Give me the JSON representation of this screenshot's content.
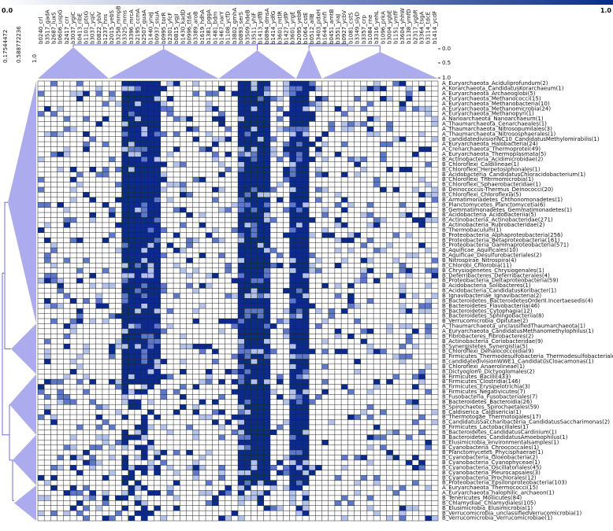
{
  "chart_data": {
    "type": "heatmap",
    "title": "",
    "colorbar": {
      "min_label": "0.0",
      "max_label": "1.0",
      "low_color": "#ffffff",
      "high_color": "#0a2a8c"
    },
    "dendrogram_color": "#8f8fe8",
    "column_dendrogram_ticks": [
      "0.0",
      "0.5",
      "1.0"
    ],
    "row_dendrogram_ticks": [
      "0.17544472",
      "0.588772236",
      "1.0"
    ],
    "columns": [
      "b0240_crl",
      "b3517_gadA",
      "b2687_luxS",
      "b0606_uspG",
      "b2417_crr",
      "b3037_ygiC",
      "b0413_ribE",
      "b1101_ptsG",
      "b3037_yqiC",
      "b0822_ybiV",
      "b1237_hns",
      "b2015_yebS",
      "b3258_mmpB",
      "b3325_mms",
      "b3396_mrcA",
      "b2195_ccmA",
      "b2507_guaA",
      "b1440_yneJ",
      "b0937_ssuA",
      "b0995_torR",
      "b2301_yfcF",
      "b0815_ygjI",
      "b1430_kadD",
      "b0996_ttdA",
      "b3389_aroB",
      "b1619_hdhA",
      "b1381_pggA",
      "b1481_bdm",
      "b1467_narY",
      "b1108_ycfD",
      "b3802_gmhA",
      "b0893_serS",
      "b3509_hdeB",
      "b3511_yhiF",
      "b1413_ydfB",
      "b0894_dmsA",
      "b1414_ydfG",
      "b3601_mtlR",
      "b1427_ydfP",
      "b3601_yrgE",
      "b2095_yebR",
      "b1064_cstE",
      "b0512_allB",
      "b3403_pdxH",
      "b1644_ymfI",
      "b0451_amtB",
      "b3551_yiaJ",
      "b0927_ycbV",
      "b1081_cstS",
      "b3349_slyD",
      "b3357_crp",
      "b1084_rne",
      "b3316_yehL",
      "b1096_prkA",
      "b3004_ygbE",
      "b1151_ymfF",
      "b3604_yhhW",
      "b1138_ymfD",
      "b2317_ygbR",
      "b3364_tsgA",
      "b3114_tdcE",
      "b1414_ycdF"
    ],
    "rows": [
      "A_Euryarchaeota_Aciduliprofundum(2)",
      "A_Korarchaeota_CandidatusKorarchaeum(1)",
      "A_Euryarchaeota_Archaeoglobi(5)",
      "A_Euryarchaeota_Methanococci(15)",
      "A_Euryarchaeota_Methanobacteria(10)",
      "A_Euryarchaeota_Methanomicrobia(24)",
      "A_Euryarchaeota_Methanopyri(1)",
      "A_Nanoarchaeota_Nanoarchaeum(1)",
      "A_Thaumarchaeota_Cenarchaeales(1)",
      "A_Thaumarchaeota_Nitrosopumilales(3)",
      "A_Thaumarchaeota_Nitrososphaerales(1)",
      "B_candidatedivisionNC10_CandidatusMethylomirabilis(1)",
      "A_Euryarchaeota_Halobacteria(24)",
      "A_Crenarchaeota_Thermoprotei(49)",
      "A_Euryarchaeota_Thermoplasmata(5)",
      "B_Actinobacteria_Acidimicrobidae(2)",
      "B_Chloroflexi_Caldilineae(1)",
      "B_Chloroflexi_Herpetosiphonales(1)",
      "B_Acidobacteria_CandidatusChloracidobacterium(1)",
      "B_Chloroflexi_Thermomicrobia(1)",
      "B_Chloroflexi_Sphaerobacteridae(1)",
      "B_Deinococcus-Thermus_Deinococci(20)",
      "B_Chloroflexi_Chloroflexia(5)",
      "B_Armatimonadetes_Chthonomonadetes(1)",
      "B_Planctomycetes_Planctomycetia(6)",
      "B_Gemmatimonadetes_Gemmatimonadetes(1)",
      "B_Acidobacteria_Acidobacteriia(5)",
      "B_Actinobacteria_Actinobacteridae(271)",
      "B_Actinobacteria_Rubrobacteridae(2)",
      "B_Thermobaculum(1)",
      "B_Proteobacteria_Alphaproteobacteria(256)",
      "B_Proteobacteria_Betaproteobacteria(161)",
      "B_Proteobacteria_Gammaproteobacteria(571)",
      "B_Aquificae_Aquificales(10)",
      "B_Aquificae_Desulfurobacteriales(2)",
      "B_Nitrospirae_Nitrospira(4)",
      "B_Chlorobi_Chlorobia(11)",
      "B_Chrysiogenetes_Chrysiogenales(1)",
      "B_Deferribacteres_Deferribacterales(4)",
      "B_Proteobacteria_Deltaproteobacteria(59)",
      "B_Acidobacteria_Solibacteres(1)",
      "B_Acidobacteria_CandidatusKoribacter(1)",
      "B_Ignavibacteriae_Ignavibacteria(2)",
      "B_Bacteroidetes_BacteroidetesOrderII.Incertaesedis(4)",
      "B_Bacteroidetes_Flavobacteriia(46)",
      "B_Bacteroidetes_Cytophagia(12)",
      "B_Bacteroidetes_Sphingobacteriia(8)",
      "B_Verrucomicrobia_Opitutae(2)",
      "A_Thaumarchaeota_unclassifiedThaumarchaeota(1)",
      "A_Euryarchaeota_CandidatusMethanomethylophilus(1)",
      "B_Fibrobacteres_Fibrobacteres(2)",
      "B_Actinobacteria_Coriobacteridae(9)",
      "B_Synergistetes_Synergistia(5)",
      "B_Chloroflexi_Dehalococcoidia(9)",
      "B_Firmicutes_Thermodesulfobacteria_Thermodesulfobacteriales(2)",
      "B_candidatedivisionWWE1_CandidatusCloacamonas(1)",
      "B_Chloroflexi_Anaerolineae(1)",
      "B_Dictyoglomi_Dictyoglomales(2)",
      "B_Firmicutes_Bacilli(433)",
      "B_Firmicutes_Clostridia(146)",
      "B_Firmicutes_Erysipelotrichia(3)",
      "B_Firmicutes_Negativicutes(7)",
      "B_Fusobacteria_Fusobacteriales(7)",
      "B_Bacteroidetes_Bacteroidia(26)",
      "B_Spirochaetes_Spirochaetales(59)",
      "B_Caldiserica_Caldisericia(1)",
      "B_Thermotogae_Thermotogales(17)",
      "B_CandidatusSaccharibacteria_CandidatusSaccharimonas(2)",
      "B_Firmicutes_Lactobacillales(1)",
      "B_Bacteroidetes_CandidatusCardinium(1)",
      "B_Bacteroidetes_CandidatusAmoebophilus(1)",
      "B_Elusimicrobia_environmentalsamples(1)",
      "B_Cyanobacteria_Chroococcales(1)",
      "B_Planctomycetes_Phycisphaerae(1)",
      "B_Cyanobacteria_Gloeobacteria(2)",
      "B_Cyanobacteria_Cyanophyceae(1)",
      "B_Cyanobacteria_Oscillatoriales(45)",
      "B_Cyanobacteria_Pleurocapsales(3)",
      "B_Cyanobacteria_Prochlorales(12)",
      "B_Proteobacteria_Epsilonproteobacteria(103)",
      "A_Euryarchaeota_Thermococci(15)",
      "A_Euryarchaeota_halophilic_archaeon(1)",
      "B_Tenericutes_Mollicutes(84)",
      "B_Chlamydiae_Chlamydiales(105)",
      "B_Elusimicrobia_Elusimicrobia(1)",
      "B_Verrucomicrobia_unclassifiedVerrucomicrobia(1)",
      "B_Verrucomicrobia_Verrucomicrobiae(1)"
    ],
    "dark_columns_ranges": [
      [
        13,
        18
      ],
      [
        31,
        35
      ],
      [
        39,
        41
      ]
    ],
    "scattered_density": 0.12
  }
}
